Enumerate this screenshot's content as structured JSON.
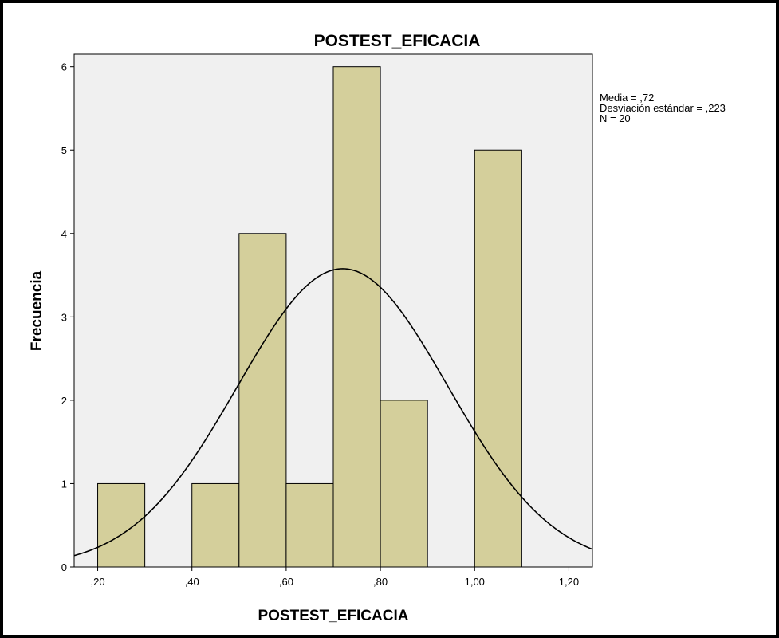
{
  "chart_data": {
    "type": "bar",
    "subtype": "histogram",
    "title": "POSTEST_EFICACIA",
    "xlabel": "POSTEST_EFICACIA",
    "ylabel": "Frecuencia",
    "xlim": [
      0.15,
      1.25
    ],
    "ylim": [
      0,
      6.15
    ],
    "x_ticks": [
      0.2,
      0.4,
      0.6,
      0.8,
      1.0,
      1.2
    ],
    "x_tick_labels": [
      ",20",
      ",40",
      ",60",
      ",80",
      "1,00",
      "1,20"
    ],
    "y_ticks": [
      0,
      1,
      2,
      3,
      4,
      5,
      6
    ],
    "y_tick_labels": [
      "0",
      "1",
      "2",
      "3",
      "4",
      "5",
      "6"
    ],
    "bins": [
      {
        "start": 0.2,
        "end": 0.3,
        "count": 1
      },
      {
        "start": 0.4,
        "end": 0.5,
        "count": 1
      },
      {
        "start": 0.5,
        "end": 0.6,
        "count": 4
      },
      {
        "start": 0.6,
        "end": 0.7,
        "count": 1
      },
      {
        "start": 0.7,
        "end": 0.8,
        "count": 6
      },
      {
        "start": 0.8,
        "end": 0.9,
        "count": 2
      },
      {
        "start": 1.0,
        "end": 1.1,
        "count": 5
      }
    ],
    "normal_curve": {
      "mean": 0.72,
      "sd": 0.223,
      "n": 20,
      "bin_width": 0.1
    },
    "stats_labels": [
      "Media = ,72",
      "Desviación estándar = ,223",
      "N = 20"
    ],
    "bar_color": "#d4cf9b",
    "plot_background": "#f0f0f0",
    "grid": false,
    "stats_placement": "top-right, outside plot"
  }
}
